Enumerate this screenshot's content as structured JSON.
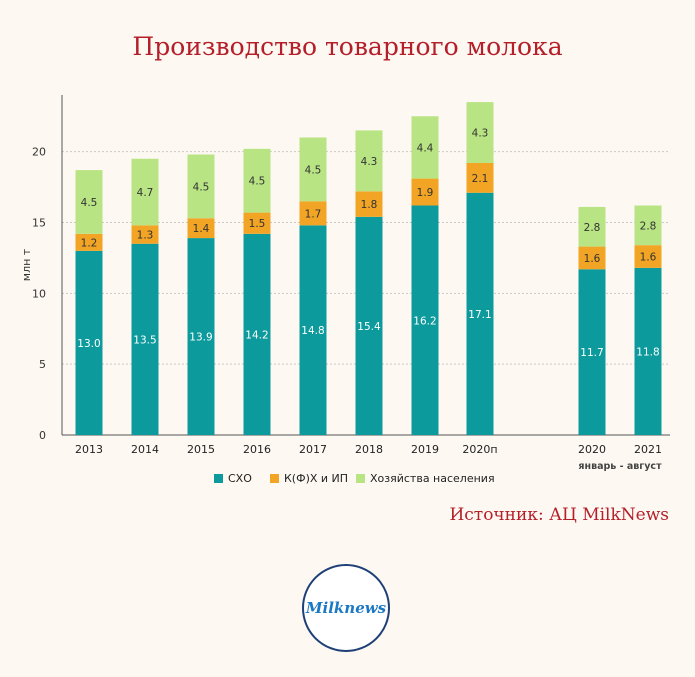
{
  "title": "Производство товарного молока",
  "source": {
    "label": "Источник:",
    "value": "АЦ MilkNews"
  },
  "logo": {
    "text": "Milknews"
  },
  "chart_data": {
    "type": "bar",
    "stacked": true,
    "categories": [
      "2013",
      "2014",
      "2015",
      "2016",
      "2017",
      "2018",
      "2019",
      "2020п",
      "2020",
      "2021"
    ],
    "category_note": {
      "text": "январь - август",
      "under": [
        "2020",
        "2021"
      ]
    },
    "series": [
      {
        "name": "СХО",
        "color": "#0d9a9c",
        "values": [
          13.0,
          13.5,
          13.9,
          14.2,
          14.8,
          15.4,
          16.2,
          17.1,
          11.7,
          11.8
        ]
      },
      {
        "name": "К(Ф)Х и ИП",
        "color": "#f2a424",
        "values": [
          1.2,
          1.3,
          1.4,
          1.5,
          1.7,
          1.8,
          1.9,
          2.1,
          1.6,
          1.6
        ]
      },
      {
        "name": "Хозяйства населения",
        "color": "#b8e484",
        "values": [
          4.5,
          4.7,
          4.5,
          4.5,
          4.5,
          4.3,
          4.4,
          4.3,
          2.8,
          2.8
        ]
      }
    ],
    "ylabel": "млн т",
    "ylim": [
      0,
      24
    ],
    "yticks": [
      0,
      5,
      10,
      15,
      20
    ],
    "grid": true,
    "legend": "bottom"
  }
}
